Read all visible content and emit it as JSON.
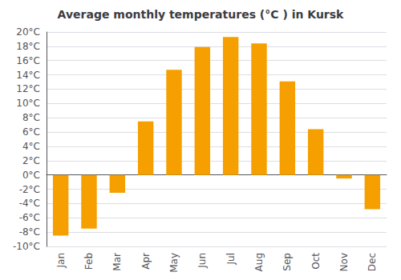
{
  "chart_data": {
    "type": "bar",
    "title": "Average monthly temperatures (°C ) in Kursk",
    "categories": [
      "Jan",
      "Feb",
      "Mar",
      "Apr",
      "May",
      "Jun",
      "Jul",
      "Aug",
      "Sep",
      "Oct",
      "Nov",
      "Dec"
    ],
    "values": [
      -8.5,
      -7.5,
      -2.5,
      7.5,
      14.7,
      17.9,
      19.3,
      18.4,
      13.1,
      6.4,
      -0.5,
      -4.8
    ],
    "color": "#F5A000",
    "ylim": [
      -10,
      20
    ],
    "yticks": [
      {
        "value": -10,
        "label": "-10°C"
      },
      {
        "value": -8,
        "label": "-8°C"
      },
      {
        "value": -6,
        "label": "-6°C"
      },
      {
        "value": -4,
        "label": "-4°C"
      },
      {
        "value": -2,
        "label": "-2°C"
      },
      {
        "value": 0,
        "label": "0°C"
      },
      {
        "value": 2,
        "label": "2°C"
      },
      {
        "value": 4,
        "label": "4°C"
      },
      {
        "value": 6,
        "label": "6°C"
      },
      {
        "value": 8,
        "label": "8°C"
      },
      {
        "value": 10,
        "label": "10°C"
      },
      {
        "value": 12,
        "label": "12°C"
      },
      {
        "value": 14,
        "label": "14°C"
      },
      {
        "value": 16,
        "label": "16°C"
      },
      {
        "value": 18,
        "label": "18°C"
      },
      {
        "value": 20,
        "label": "20°C"
      }
    ],
    "grid": true
  }
}
